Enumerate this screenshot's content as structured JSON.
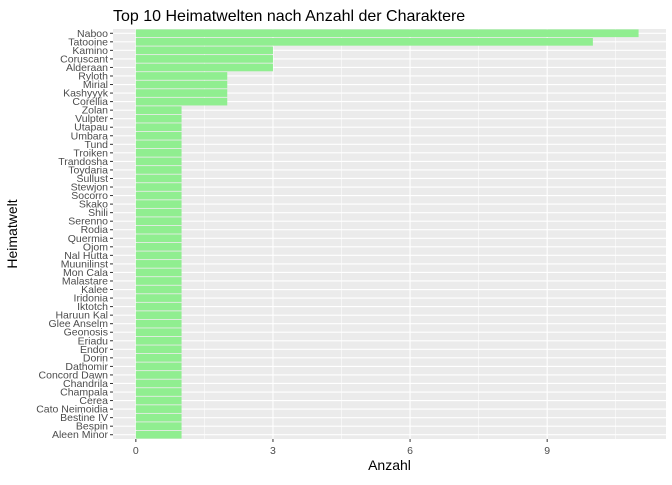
{
  "chart_data": {
    "type": "bar",
    "orientation": "horizontal",
    "title": "Top 10 Heimatwelten nach Anzahl der Charaktere",
    "xlabel": "Anzahl",
    "ylabel": "Heimatwelt",
    "xlim": [
      -0.5,
      11.6
    ],
    "xticks": [
      0,
      3,
      6,
      9
    ],
    "grid": true,
    "bar_color": "#90EE90",
    "panel_color": "#EBEBEB",
    "categories": [
      "Naboo",
      "Tatooine",
      "Kamino",
      "Coruscant",
      "Alderaan",
      "Ryloth",
      "Mirial",
      "Kashyyyk",
      "Corellia",
      "Zolan",
      "Vulpter",
      "Utapau",
      "Umbara",
      "Tund",
      "Troiken",
      "Trandosha",
      "Toydaria",
      "Sullust",
      "Stewjon",
      "Socorro",
      "Skako",
      "Shili",
      "Serenno",
      "Rodia",
      "Quermia",
      "Ojom",
      "Nal Hutta",
      "Muunilinst",
      "Mon Cala",
      "Malastare",
      "Kalee",
      "Iridonia",
      "Iktotch",
      "Haruun Kal",
      "Glee Anselm",
      "Geonosis",
      "Eriadu",
      "Endor",
      "Dorin",
      "Dathomir",
      "Concord Dawn",
      "Chandrila",
      "Champala",
      "Cerea",
      "Cato Neimoidia",
      "Bestine IV",
      "Bespin",
      "Aleen Minor"
    ],
    "values": [
      11,
      10,
      3,
      3,
      3,
      2,
      2,
      2,
      2,
      1,
      1,
      1,
      1,
      1,
      1,
      1,
      1,
      1,
      1,
      1,
      1,
      1,
      1,
      1,
      1,
      1,
      1,
      1,
      1,
      1,
      1,
      1,
      1,
      1,
      1,
      1,
      1,
      1,
      1,
      1,
      1,
      1,
      1,
      1,
      1,
      1,
      1,
      1
    ]
  }
}
